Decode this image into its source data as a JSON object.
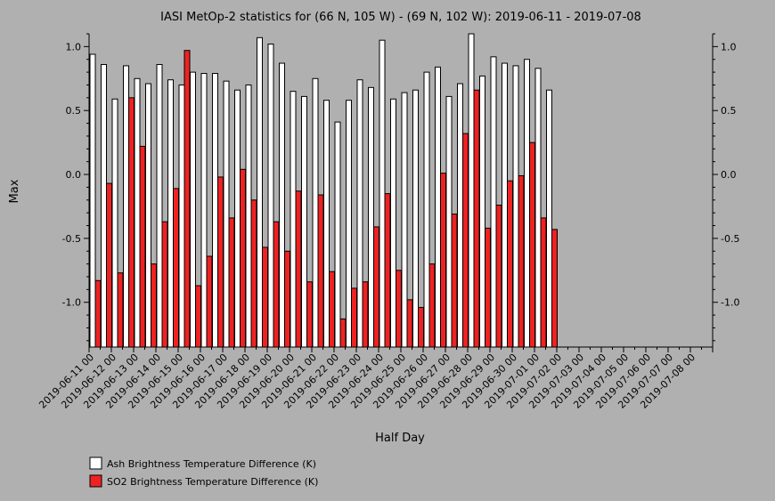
{
  "chart_data": {
    "type": "bar",
    "title": "IASI MetOp-2 statistics for (66 N, 105 W) - (69 N, 102 W): 2019-06-11 - 2019-07-08",
    "xlabel": "Half Day",
    "ylabel": "Max",
    "ylim": [
      -1.35,
      1.1
    ],
    "yticks": [
      1.0,
      0.5,
      0.0,
      -0.5,
      -1.0
    ],
    "ytick_labels": [
      "1.0",
      "0.5",
      "0.0",
      "-0.5",
      "-1.0"
    ],
    "x_tick_labels": [
      "2019-06-11 00",
      "2019-06-12 00",
      "2019-06-13 00",
      "2019-06-14 00",
      "2019-06-15 00",
      "2019-06-16 00",
      "2019-06-17 00",
      "2019-06-18 00",
      "2019-06-19 00",
      "2019-06-20 00",
      "2019-06-21 00",
      "2019-06-22 00",
      "2019-06-23 00",
      "2019-06-24 00",
      "2019-06-25 00",
      "2019-06-26 00",
      "2019-06-27 00",
      "2019-06-28 00",
      "2019-06-29 00",
      "2019-06-30 00",
      "2019-07-01 00",
      "2019-07-02 00",
      "2019-07-03 00",
      "2019-07-04 00",
      "2019-07-05 00",
      "2019-07-06 00",
      "2019-07-07 00",
      "2019-07-08 00"
    ],
    "half_day_slots": 56,
    "grid": false,
    "legend_position": "bottom-left",
    "series": [
      {
        "name": "Ash Brightness Temperature Difference (K)",
        "color": "#ffffff",
        "values": [
          0.94,
          0.86,
          0.59,
          0.85,
          0.75,
          0.71,
          0.86,
          0.74,
          0.7,
          0.8,
          0.79,
          0.79,
          0.73,
          0.66,
          0.7,
          1.07,
          1.02,
          0.87,
          0.65,
          0.61,
          0.75,
          0.58,
          0.41,
          0.58,
          0.74,
          0.68,
          1.05,
          0.59,
          0.64,
          0.66,
          0.8,
          0.84,
          0.61,
          0.71,
          1.1,
          0.77,
          0.92,
          0.87,
          0.85,
          0.9,
          0.83,
          0.66
        ]
      },
      {
        "name": "SO2 Brightness Temperature Difference (K)",
        "color": "#ee2222",
        "values": [
          -0.83,
          -0.07,
          -0.77,
          0.6,
          0.22,
          -0.7,
          -0.37,
          -0.11,
          0.97,
          -0.87,
          -0.64,
          -0.02,
          -0.34,
          0.04,
          -0.2,
          -0.57,
          -0.37,
          -0.6,
          -0.13,
          -0.84,
          -0.16,
          -0.76,
          -1.13,
          -0.89,
          -0.84,
          -0.41,
          -0.15,
          -0.75,
          -0.98,
          -1.04,
          -0.7,
          0.01,
          -0.31,
          0.32,
          0.66,
          -0.42,
          -0.24,
          -0.05,
          -0.01,
          0.25,
          -0.34,
          -0.43
        ]
      }
    ]
  }
}
